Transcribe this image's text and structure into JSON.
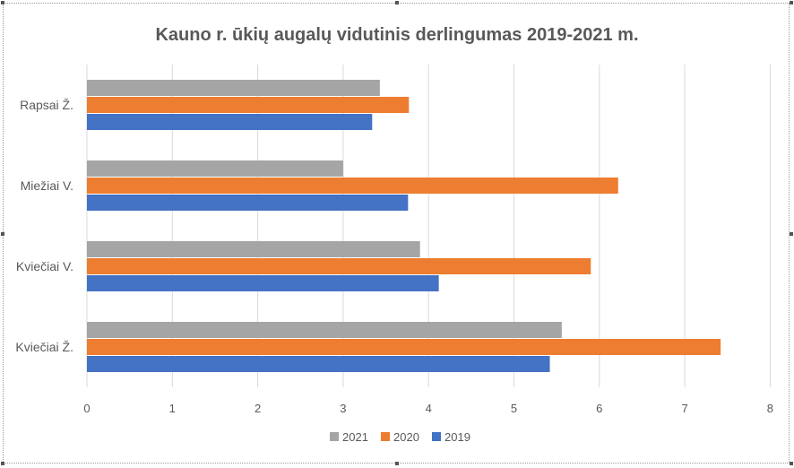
{
  "chart_data": {
    "type": "bar",
    "orientation": "horizontal",
    "title": "Kauno r. ūkių augalų vidutinis derlingumas 2019-2021 m.",
    "xlabel": "",
    "ylabel": "",
    "categories": [
      "Kviečiai Ž.",
      "Kviečiai V.",
      "Miežiai V.",
      "Rapsai Ž."
    ],
    "series": [
      {
        "name": "2019",
        "color": "#4472c4",
        "values": [
          5.42,
          4.12,
          3.76,
          3.34
        ]
      },
      {
        "name": "2020",
        "color": "#ed7d31",
        "values": [
          7.42,
          5.9,
          6.22,
          3.77
        ]
      },
      {
        "name": "2021",
        "color": "#a5a5a5",
        "values": [
          5.56,
          3.9,
          3.0,
          3.43
        ]
      }
    ],
    "xlim": [
      0,
      8
    ],
    "xticks": [
      "0",
      "1",
      "2",
      "3",
      "4",
      "5",
      "6",
      "7",
      "8"
    ],
    "grid": true,
    "legend_position": "bottom",
    "legend_order": [
      "2021",
      "2020",
      "2019"
    ]
  }
}
